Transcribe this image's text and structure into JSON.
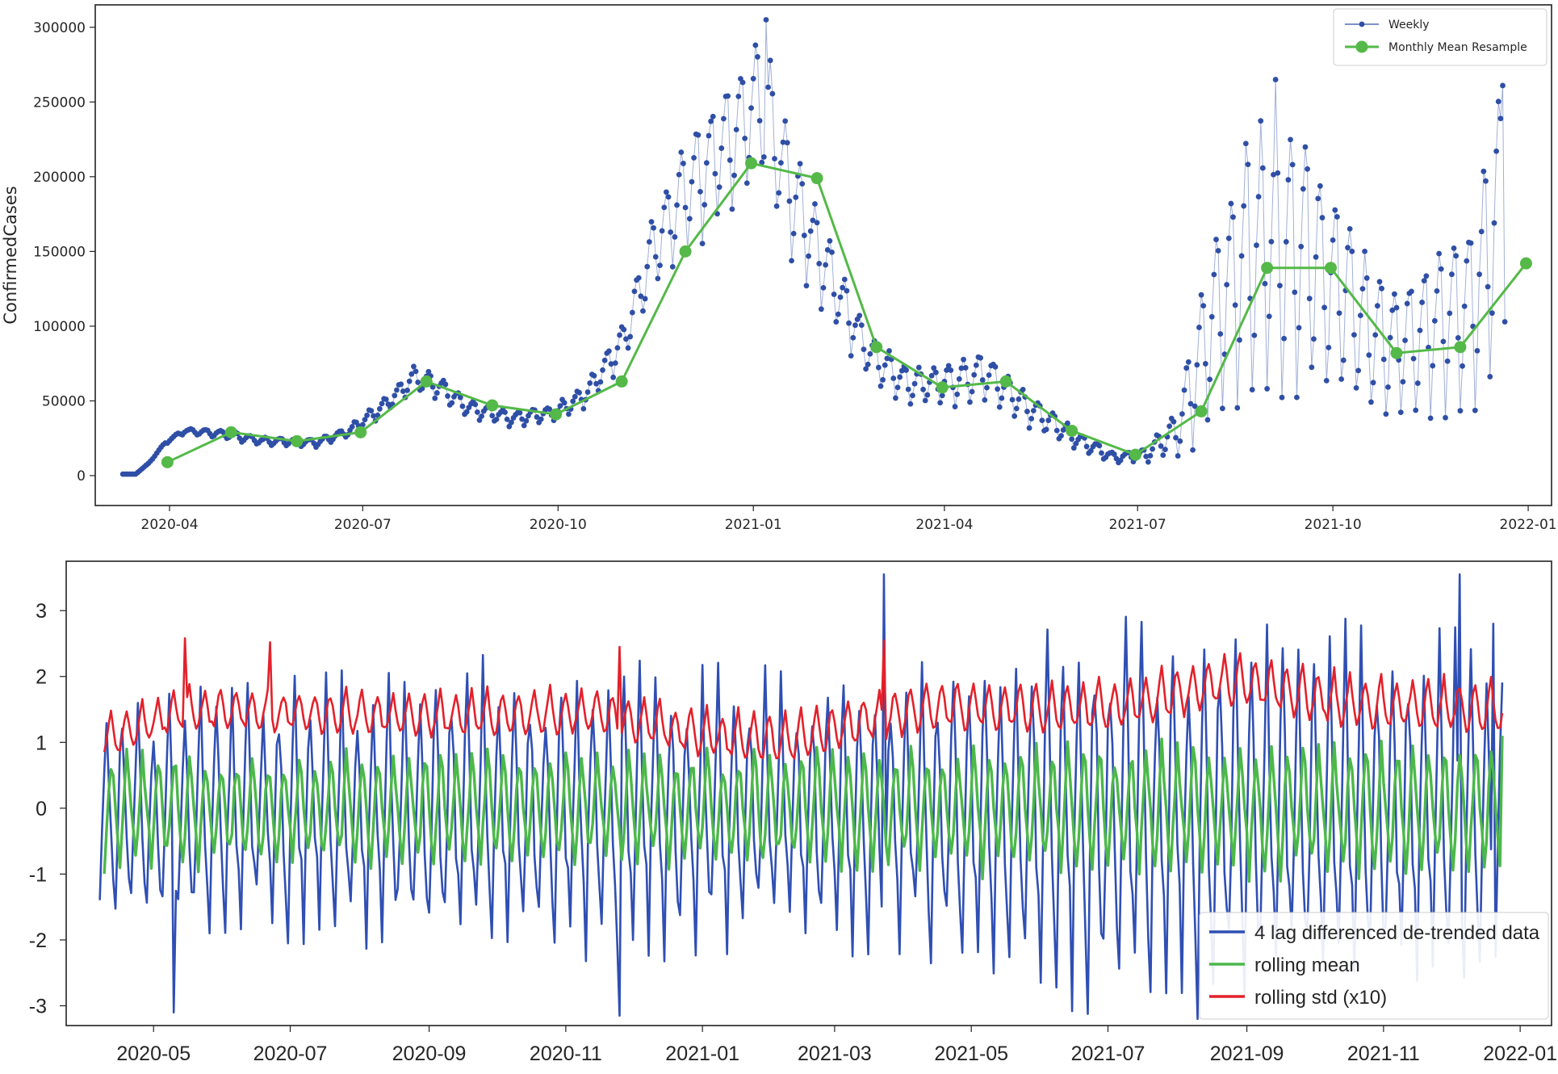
{
  "chart_data": [
    {
      "type": "line",
      "ylabel": "ConfirmedCases",
      "xlabel": "",
      "ylim": [
        -20000,
        315000
      ],
      "x_range": [
        "2020-02-26",
        "2022-01-12"
      ],
      "x_tick_labels": [
        "2020-04",
        "2020-07",
        "2020-10",
        "2021-01",
        "2021-04",
        "2021-07",
        "2021-10",
        "2022-01"
      ],
      "x_tick_dates": [
        "2020-04-01",
        "2020-07-01",
        "2020-10-01",
        "2021-01-01",
        "2021-04-01",
        "2021-07-01",
        "2021-10-01",
        "2022-01-01"
      ],
      "y_ticks": [
        0,
        50000,
        100000,
        150000,
        200000,
        250000,
        300000
      ],
      "legend_position": "top-right",
      "weekly_color": "#2f4fa6",
      "monthly_color": "#54b948",
      "series": [
        {
          "name": "Weekly",
          "start_date": "2020-03-10",
          "x_step_days": 1,
          "anchors": [
            [
              "2020-03-10",
              1000
            ],
            [
              "2020-03-16",
              1000
            ],
            [
              "2020-03-22",
              8000
            ],
            [
              "2020-03-30",
              22000
            ],
            [
              "2020-04-08",
              30000
            ],
            [
              "2020-04-25",
              28000
            ],
            [
              "2020-05-15",
              23000
            ],
            [
              "2020-06-10",
              22000
            ],
            [
              "2020-06-25",
              30000
            ],
            [
              "2020-07-10",
              45000
            ],
            [
              "2020-07-25",
              65000
            ],
            [
              "2020-08-05",
              60000
            ],
            [
              "2020-08-20",
              45000
            ],
            [
              "2020-09-10",
              38000
            ],
            [
              "2020-09-30",
              42000
            ],
            [
              "2020-10-15",
              55000
            ],
            [
              "2020-11-01",
              90000
            ],
            [
              "2020-11-15",
              150000
            ],
            [
              "2020-12-01",
              190000
            ],
            [
              "2020-12-20",
              220000
            ],
            [
              "2021-01-05",
              250000
            ],
            [
              "2021-01-15",
              200000
            ],
            [
              "2021-01-28",
              160000
            ],
            [
              "2021-02-10",
              120000
            ],
            [
              "2021-02-25",
              80000
            ],
            [
              "2021-03-15",
              60000
            ],
            [
              "2021-04-05",
              62000
            ],
            [
              "2021-04-20",
              68000
            ],
            [
              "2021-05-10",
              45000
            ],
            [
              "2021-06-01",
              25000
            ],
            [
              "2021-06-20",
              12000
            ],
            [
              "2021-07-05",
              14000
            ],
            [
              "2021-07-20",
              30000
            ],
            [
              "2021-08-05",
              100000
            ],
            [
              "2021-08-20",
              140000
            ],
            [
              "2021-09-05",
              150000
            ],
            [
              "2021-09-20",
              140000
            ],
            [
              "2021-10-05",
              120000
            ],
            [
              "2021-10-20",
              90000
            ],
            [
              "2021-11-05",
              85000
            ],
            [
              "2021-11-20",
              100000
            ],
            [
              "2021-12-05",
              110000
            ],
            [
              "2021-12-15",
              150000
            ],
            [
              "2021-12-21",
              200000
            ]
          ],
          "weekly_amplitude_anchors": [
            [
              "2020-03-10",
              0
            ],
            [
              "2020-05-01",
              0.12
            ],
            [
              "2020-10-15",
              0.15
            ],
            [
              "2020-12-01",
              0.22
            ],
            [
              "2021-03-01",
              0.22
            ],
            [
              "2021-07-01",
              0.3
            ],
            [
              "2021-08-01",
              0.75
            ],
            [
              "2021-10-15",
              0.6
            ],
            [
              "2021-12-21",
              0.6
            ]
          ],
          "peaks": [
            [
              "2021-01-07",
              305000
            ],
            [
              "2021-09-04",
              265000
            ],
            [
              "2021-12-20",
              261000
            ]
          ]
        },
        {
          "name": "Monthly Mean Resample",
          "points": [
            [
              "2020-03-31",
              9000
            ],
            [
              "2020-04-30",
              29000
            ],
            [
              "2020-05-31",
              23000
            ],
            [
              "2020-06-30",
              29000
            ],
            [
              "2020-07-31",
              63000
            ],
            [
              "2020-08-31",
              47000
            ],
            [
              "2020-09-30",
              41000
            ],
            [
              "2020-10-31",
              63000
            ],
            [
              "2020-11-30",
              150000
            ],
            [
              "2020-12-31",
              209000
            ],
            [
              "2021-01-31",
              199000
            ],
            [
              "2021-02-28",
              86000
            ],
            [
              "2021-03-31",
              59000
            ],
            [
              "2021-04-30",
              63000
            ],
            [
              "2021-05-31",
              30000
            ],
            [
              "2021-06-30",
              14000
            ],
            [
              "2021-07-31",
              43000
            ],
            [
              "2021-08-31",
              139000
            ],
            [
              "2021-09-30",
              139000
            ],
            [
              "2021-10-31",
              82000
            ],
            [
              "2021-11-30",
              86000
            ],
            [
              "2021-12-31",
              142000
            ]
          ]
        }
      ]
    },
    {
      "type": "line",
      "ylabel": "",
      "xlabel": "",
      "ylim": [
        -3.3,
        3.75
      ],
      "x_range": [
        "2020-03-23",
        "2022-01-15"
      ],
      "x_tick_labels": [
        "2020-05",
        "2020-07",
        "2020-09",
        "2020-11",
        "2021-01",
        "2021-03",
        "2021-05",
        "2021-07",
        "2021-09",
        "2021-11",
        "2022-01"
      ],
      "x_tick_dates": [
        "2020-05-01",
        "2020-07-01",
        "2020-09-01",
        "2020-11-01",
        "2021-01-01",
        "2021-03-01",
        "2021-05-01",
        "2021-07-01",
        "2021-09-01",
        "2021-11-01",
        "2022-01-01"
      ],
      "y_ticks": [
        -3,
        -2,
        -1,
        0,
        1,
        2,
        3
      ],
      "legend_position": "lower-right",
      "series": [
        {
          "name": "4 lag differenced de-trended data",
          "color": "#2f4fb3",
          "start_date": "2020-04-07",
          "end_date": "2021-12-24",
          "period_days": 7,
          "amplitude_anchors": [
            [
              "2020-04-07",
              1.6
            ],
            [
              "2020-10-01",
              2.1
            ],
            [
              "2021-03-01",
              1.9
            ],
            [
              "2021-07-01",
              2.7
            ],
            [
              "2021-12-24",
              2.6
            ]
          ],
          "offset_anchors": [
            [
              "2020-04-07",
              0.0
            ],
            [
              "2021-12-24",
              0.0
            ]
          ],
          "extremes": [
            [
              "2020-05-10",
              -3.1
            ],
            [
              "2020-11-25",
              -3.15
            ],
            [
              "2021-03-23",
              3.55
            ],
            [
              "2021-08-10",
              -3.2
            ],
            [
              "2021-12-05",
              3.55
            ],
            [
              "2021-12-20",
              2.8
            ]
          ]
        },
        {
          "name": "rolling mean",
          "color": "#4cb84a",
          "start_date": "2020-04-09",
          "end_date": "2021-12-24",
          "period_days": 7,
          "amplitude_anchors": [
            [
              "2020-04-09",
              0.9
            ],
            [
              "2020-12-01",
              0.85
            ],
            [
              "2021-07-01",
              1.0
            ],
            [
              "2021-12-24",
              1.0
            ]
          ],
          "offset_anchors": [
            [
              "2020-04-09",
              0.0
            ],
            [
              "2021-12-24",
              0.0
            ]
          ],
          "extremes": [
            [
              "2021-12-24",
              1.1
            ]
          ]
        },
        {
          "name": "rolling std (x10)",
          "color": "#e3212b",
          "start_date": "2020-04-09",
          "end_date": "2021-12-24",
          "period_days": 7,
          "amplitude_anchors": [
            [
              "2020-04-09",
              0.35
            ],
            [
              "2021-07-15",
              0.45
            ],
            [
              "2021-12-24",
              0.45
            ]
          ],
          "offset_anchors": [
            [
              "2020-04-09",
              1.05
            ],
            [
              "2020-05-15",
              1.5
            ],
            [
              "2020-07-15",
              1.45
            ],
            [
              "2020-09-01",
              1.4
            ],
            [
              "2020-10-15",
              1.45
            ],
            [
              "2020-11-15",
              1.45
            ],
            [
              "2021-01-05",
              1.1
            ],
            [
              "2021-02-10",
              1.05
            ],
            [
              "2021-03-15",
              1.35
            ],
            [
              "2021-04-15",
              1.55
            ],
            [
              "2021-06-15",
              1.5
            ],
            [
              "2021-07-15",
              1.6
            ],
            [
              "2021-08-25",
              1.95
            ],
            [
              "2021-10-15",
              1.6
            ],
            [
              "2021-12-24",
              1.5
            ]
          ],
          "extremes": [
            [
              "2020-05-15",
              2.58
            ],
            [
              "2020-06-22",
              2.52
            ],
            [
              "2020-11-25",
              2.45
            ],
            [
              "2021-03-23",
              2.55
            ]
          ]
        }
      ]
    }
  ]
}
